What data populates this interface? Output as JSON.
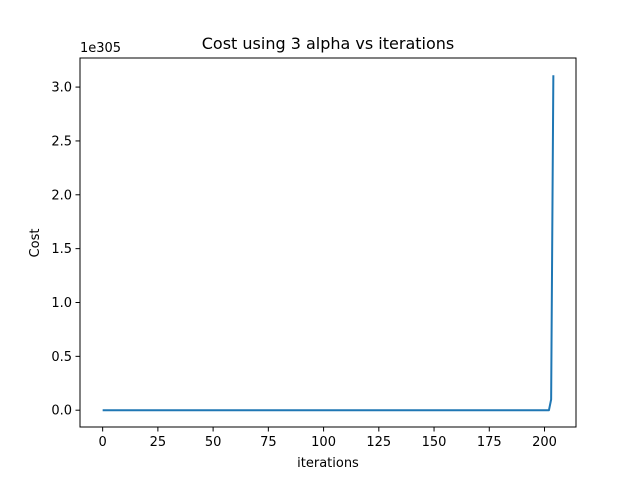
{
  "chart_data": {
    "type": "line",
    "title": "Cost using 3 alpha vs iterations",
    "xlabel": "iterations",
    "ylabel": "Cost",
    "offset_label": "1e305",
    "xlim": [
      -10.25,
      214.25
    ],
    "ylim": [
      -0.156,
      3.27
    ],
    "x_ticks": [
      0,
      25,
      50,
      75,
      100,
      125,
      150,
      175,
      200
    ],
    "y_ticks": [
      0.0,
      0.5,
      1.0,
      1.5,
      2.0,
      2.5,
      3.0
    ],
    "y_tick_labels": [
      "0.0",
      "0.5",
      "1.0",
      "1.5",
      "2.0",
      "2.5",
      "3.0"
    ],
    "grid": false,
    "line_color": "#1f77b4",
    "series": [
      {
        "x": [
          0,
          50,
          100,
          150,
          200,
          201,
          202,
          203,
          204
        ],
        "y": [
          0,
          0,
          0,
          0,
          0,
          0,
          0.0001,
          0.1,
          3.11
        ]
      }
    ]
  }
}
